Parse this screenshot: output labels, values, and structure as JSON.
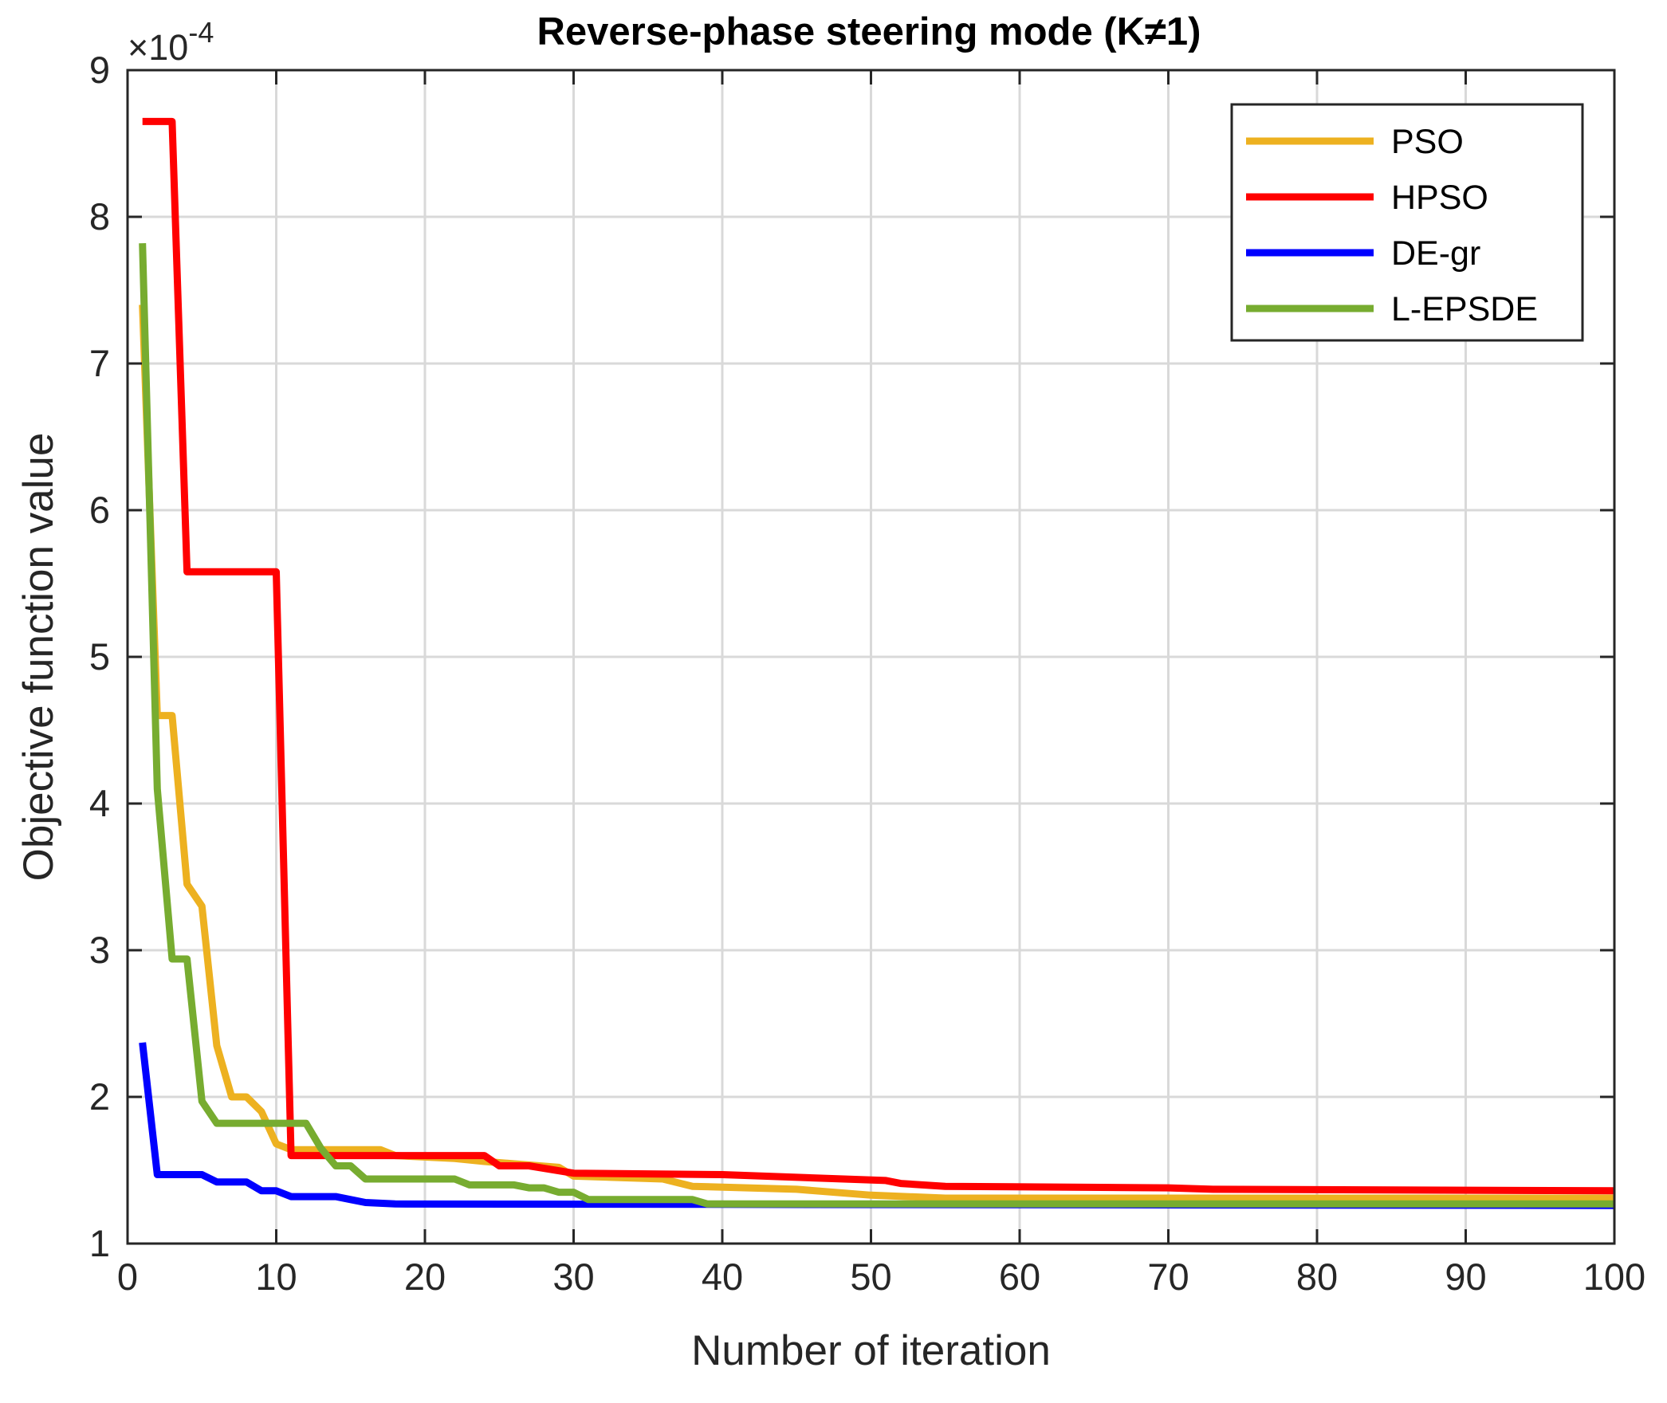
{
  "chart_data": {
    "type": "line",
    "title": "Reverse-phase steering mode (K≠1)",
    "xlabel": "Number of iteration",
    "ylabel": "Objective function value",
    "y_exponent_label": "×10",
    "y_exponent_power": "-4",
    "xlim": [
      0,
      100
    ],
    "ylim": [
      1,
      9
    ],
    "xticks": [
      0,
      10,
      20,
      30,
      40,
      50,
      60,
      70,
      80,
      90,
      100
    ],
    "yticks": [
      1,
      2,
      3,
      4,
      5,
      6,
      7,
      8,
      9
    ],
    "grid": true,
    "legend_position": "top-right",
    "series": [
      {
        "name": "PSO",
        "color": "#EDB120",
        "points": [
          [
            1,
            7.4
          ],
          [
            2,
            4.6
          ],
          [
            3,
            4.6
          ],
          [
            4,
            3.45
          ],
          [
            5,
            3.3
          ],
          [
            6,
            2.35
          ],
          [
            7,
            2.0
          ],
          [
            8,
            2.0
          ],
          [
            9,
            1.9
          ],
          [
            10,
            1.68
          ],
          [
            11,
            1.64
          ],
          [
            17,
            1.64
          ],
          [
            18,
            1.6
          ],
          [
            22,
            1.58
          ],
          [
            24,
            1.56
          ],
          [
            29,
            1.52
          ],
          [
            30,
            1.46
          ],
          [
            36,
            1.44
          ],
          [
            38,
            1.39
          ],
          [
            45,
            1.37
          ],
          [
            50,
            1.33
          ],
          [
            55,
            1.31
          ],
          [
            100,
            1.31
          ]
        ]
      },
      {
        "name": "HPSO",
        "color": "#FF0000",
        "points": [
          [
            1,
            8.65
          ],
          [
            3,
            8.65
          ],
          [
            4,
            5.58
          ],
          [
            10,
            5.58
          ],
          [
            11,
            1.6
          ],
          [
            24,
            1.6
          ],
          [
            25,
            1.53
          ],
          [
            27,
            1.53
          ],
          [
            30,
            1.48
          ],
          [
            40,
            1.47
          ],
          [
            51,
            1.43
          ],
          [
            52,
            1.41
          ],
          [
            55,
            1.39
          ],
          [
            70,
            1.38
          ],
          [
            73,
            1.37
          ],
          [
            100,
            1.36
          ]
        ]
      },
      {
        "name": "DE-gr",
        "color": "#0000FF",
        "points": [
          [
            1,
            2.37
          ],
          [
            2,
            1.47
          ],
          [
            5,
            1.47
          ],
          [
            6,
            1.42
          ],
          [
            8,
            1.42
          ],
          [
            9,
            1.36
          ],
          [
            10,
            1.36
          ],
          [
            11,
            1.32
          ],
          [
            14,
            1.32
          ],
          [
            15,
            1.3
          ],
          [
            16,
            1.28
          ],
          [
            18,
            1.27
          ],
          [
            100,
            1.26
          ]
        ]
      },
      {
        "name": "L-EPSDE",
        "color": "#77AC30",
        "points": [
          [
            1,
            7.82
          ],
          [
            2,
            4.1
          ],
          [
            3,
            2.94
          ],
          [
            4,
            2.94
          ],
          [
            5,
            1.97
          ],
          [
            6,
            1.82
          ],
          [
            12,
            1.82
          ],
          [
            13,
            1.65
          ],
          [
            14,
            1.53
          ],
          [
            15,
            1.53
          ],
          [
            16,
            1.44
          ],
          [
            22,
            1.44
          ],
          [
            23,
            1.4
          ],
          [
            26,
            1.4
          ],
          [
            27,
            1.38
          ],
          [
            28,
            1.38
          ],
          [
            29,
            1.35
          ],
          [
            30,
            1.35
          ],
          [
            31,
            1.3
          ],
          [
            38,
            1.3
          ],
          [
            39,
            1.27
          ],
          [
            100,
            1.27
          ]
        ]
      }
    ]
  }
}
